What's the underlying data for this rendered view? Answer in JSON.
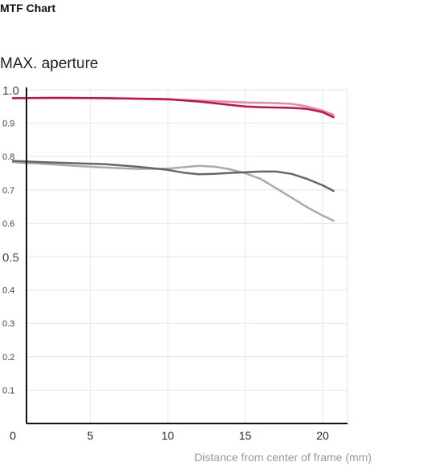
{
  "header": {
    "title": "MTF Chart"
  },
  "chart_data": {
    "type": "line",
    "subtitle": "MAX. aperture",
    "xlabel": "Distance from center of frame (mm)",
    "ylabel": "",
    "xlim": [
      0,
      20.7
    ],
    "ylim": [
      0,
      1.0
    ],
    "x_ticks": [
      "0",
      "5",
      "10",
      "15",
      "20"
    ],
    "x_tick_values": [
      0,
      5,
      10,
      15,
      20
    ],
    "y_ticks": [
      "1.0",
      "0.9",
      "0.8",
      "0.7",
      "0.6",
      "0.5",
      "0.4",
      "0.3",
      "0.2",
      "0.1"
    ],
    "y_tick_values": [
      1.0,
      0.9,
      0.8,
      0.7,
      0.6,
      0.5,
      0.4,
      0.3,
      0.2,
      0.1
    ],
    "grid": true,
    "series": [
      {
        "color": "#e8899e",
        "points": [
          [
            0,
            0.975
          ],
          [
            3,
            0.976
          ],
          [
            6,
            0.975
          ],
          [
            9,
            0.972
          ],
          [
            11,
            0.97
          ],
          [
            13,
            0.966
          ],
          [
            15,
            0.962
          ],
          [
            17,
            0.96
          ],
          [
            18,
            0.958
          ],
          [
            19,
            0.95
          ],
          [
            20,
            0.938
          ],
          [
            20.7,
            0.925
          ]
        ]
      },
      {
        "color": "#c8103e",
        "points": [
          [
            0,
            0.975
          ],
          [
            3,
            0.976
          ],
          [
            6,
            0.975
          ],
          [
            9,
            0.973
          ],
          [
            10,
            0.972
          ],
          [
            12,
            0.965
          ],
          [
            14,
            0.955
          ],
          [
            15,
            0.95
          ],
          [
            16,
            0.948
          ],
          [
            18,
            0.946
          ],
          [
            19,
            0.943
          ],
          [
            20,
            0.933
          ],
          [
            20.7,
            0.918
          ]
        ]
      },
      {
        "color": "#aaaaaa",
        "points": [
          [
            0,
            0.783
          ],
          [
            2,
            0.778
          ],
          [
            4,
            0.772
          ],
          [
            6,
            0.767
          ],
          [
            8,
            0.763
          ],
          [
            10,
            0.764
          ],
          [
            11,
            0.768
          ],
          [
            12,
            0.772
          ],
          [
            13,
            0.77
          ],
          [
            14,
            0.762
          ],
          [
            15,
            0.75
          ],
          [
            16,
            0.733
          ],
          [
            17,
            0.705
          ],
          [
            18,
            0.677
          ],
          [
            19,
            0.648
          ],
          [
            20,
            0.623
          ],
          [
            20.7,
            0.608
          ]
        ]
      },
      {
        "color": "#666666",
        "points": [
          [
            0,
            0.787
          ],
          [
            2,
            0.783
          ],
          [
            4,
            0.78
          ],
          [
            6,
            0.777
          ],
          [
            8,
            0.77
          ],
          [
            10,
            0.76
          ],
          [
            11,
            0.752
          ],
          [
            12,
            0.747
          ],
          [
            13,
            0.748
          ],
          [
            14,
            0.751
          ],
          [
            15,
            0.753
          ],
          [
            16,
            0.755
          ],
          [
            17,
            0.755
          ],
          [
            18,
            0.748
          ],
          [
            19,
            0.733
          ],
          [
            20,
            0.714
          ],
          [
            20.7,
            0.697
          ]
        ]
      }
    ]
  }
}
